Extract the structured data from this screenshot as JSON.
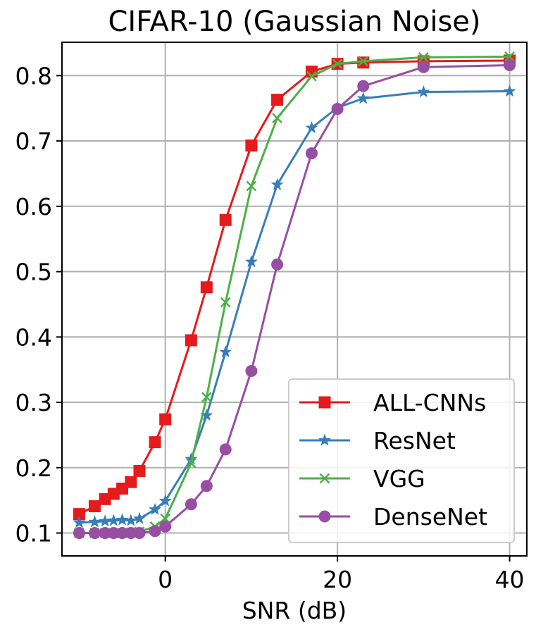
{
  "chart_data": {
    "type": "line",
    "title": "CIFAR-10 (Gaussian Noise)",
    "xlabel": "SNR (dB)",
    "ylabel": "",
    "xlim": [
      -12,
      42
    ],
    "ylim": [
      0.065,
      0.851
    ],
    "xticks": [
      0,
      20,
      40
    ],
    "xtick_labels": [
      "0",
      "20",
      "40"
    ],
    "yticks": [
      0.1,
      0.2,
      0.3,
      0.4,
      0.5,
      0.6,
      0.7,
      0.8
    ],
    "ytick_labels": [
      "0.1",
      "0.2",
      "0.3",
      "0.4",
      "0.5",
      "0.6",
      "0.7",
      "0.8"
    ],
    "grid": true,
    "legend_position": "bottom-right",
    "series": [
      {
        "name": "ALL-CNNs",
        "color": "#e41a1c",
        "marker": "square",
        "x": [
          -10,
          -8.2,
          -7,
          -6,
          -5,
          -4,
          -3,
          -1.2,
          0,
          3,
          4.8,
          7,
          10,
          13,
          17,
          20,
          23,
          30,
          40
        ],
        "y": [
          0.129,
          0.141,
          0.152,
          0.16,
          0.168,
          0.178,
          0.195,
          0.239,
          0.274,
          0.395,
          0.476,
          0.579,
          0.693,
          0.763,
          0.806,
          0.818,
          0.82,
          0.822,
          0.823
        ]
      },
      {
        "name": "ResNet",
        "color": "#377eb8",
        "marker": "star",
        "x": [
          -10,
          -8.2,
          -7,
          -6,
          -5,
          -4,
          -3,
          -1.2,
          0,
          3,
          4.8,
          7,
          10,
          13,
          17,
          20,
          23,
          30,
          40
        ],
        "y": [
          0.116,
          0.117,
          0.118,
          0.119,
          0.12,
          0.119,
          0.122,
          0.136,
          0.149,
          0.213,
          0.28,
          0.377,
          0.515,
          0.633,
          0.72,
          0.751,
          0.765,
          0.775,
          0.776
        ]
      },
      {
        "name": "VGG",
        "color": "#4daf4a",
        "marker": "x",
        "x": [
          -10,
          -8.2,
          -7,
          -6,
          -5,
          -4,
          -3,
          -1.2,
          0,
          3,
          4.8,
          7,
          10,
          13,
          17,
          20,
          23,
          30,
          40
        ],
        "y": [
          0.1,
          0.1,
          0.1,
          0.1,
          0.1,
          0.101,
          0.102,
          0.11,
          0.122,
          0.207,
          0.308,
          0.453,
          0.631,
          0.735,
          0.799,
          0.818,
          0.822,
          0.828,
          0.829
        ]
      },
      {
        "name": "DenseNet",
        "color": "#984ea3",
        "marker": "circle",
        "x": [
          -10,
          -8.2,
          -7,
          -6,
          -5,
          -4,
          -3,
          -1.2,
          0,
          3,
          4.8,
          7,
          10,
          13,
          17,
          20,
          23,
          30,
          40
        ],
        "y": [
          0.1,
          0.1,
          0.1,
          0.1,
          0.1,
          0.1,
          0.1,
          0.103,
          0.11,
          0.144,
          0.172,
          0.228,
          0.348,
          0.511,
          0.681,
          0.749,
          0.784,
          0.813,
          0.816
        ]
      }
    ]
  }
}
